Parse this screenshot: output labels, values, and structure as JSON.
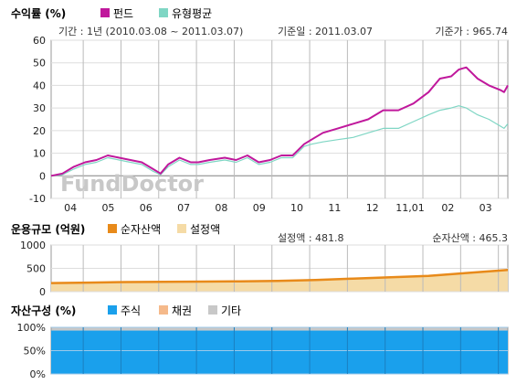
{
  "colors": {
    "fund": "#c0189c",
    "peer_avg": "#7fd6c4",
    "net_assets": "#e88a1a",
    "set_amount": "#f5dba6",
    "stock": "#1aa0ec",
    "bond": "#f5b98a",
    "other": "#c8c8c8",
    "grid": "#dddddd",
    "vgrid": "#bbbbbb"
  },
  "watermark": "FundDoctor",
  "chart_data": [
    {
      "id": "returns",
      "type": "line",
      "title": "수익률 (%)",
      "period_label": "기간 : 1년 (2010.03.08 ~ 2011.03.07)",
      "base_date_label": "기준일 : 2011.03.07",
      "base_price_label": "기준가 : 965.74",
      "ylim": [
        -10,
        60
      ],
      "yticks": [
        60,
        50,
        40,
        30,
        20,
        10,
        0,
        -10
      ],
      "grid": true,
      "legend_position": "top-left",
      "x_range": [
        0,
        12.1
      ],
      "xticks": [
        {
          "label": "04",
          "x": 0.85
        },
        {
          "label": "05",
          "x": 1.85
        },
        {
          "label": "06",
          "x": 2.85
        },
        {
          "label": "07",
          "x": 3.85
        },
        {
          "label": "08",
          "x": 4.85
        },
        {
          "label": "09",
          "x": 5.85
        },
        {
          "label": "10",
          "x": 6.85
        },
        {
          "label": "11",
          "x": 7.85
        },
        {
          "label": "12",
          "x": 8.85
        },
        {
          "label": "11,01",
          "x": 9.85
        },
        {
          "label": "02",
          "x": 10.85
        },
        {
          "label": "03",
          "x": 11.85
        }
      ],
      "series": [
        {
          "name": "펀드",
          "color_key": "fund",
          "x": [
            0,
            0.3,
            0.6,
            0.9,
            1.2,
            1.5,
            1.8,
            2.1,
            2.4,
            2.7,
            2.9,
            3.1,
            3.4,
            3.7,
            3.9,
            4.2,
            4.6,
            4.9,
            5.2,
            5.5,
            5.8,
            6.1,
            6.4,
            6.7,
            6.9,
            7.2,
            7.6,
            8.0,
            8.4,
            8.8,
            9.2,
            9.6,
            10.0,
            10.3,
            10.6,
            10.8,
            11.0,
            11.3,
            11.6,
            11.9,
            12.0,
            12.1
          ],
          "y": [
            0,
            1,
            4,
            6,
            7,
            9,
            8,
            7,
            6,
            3,
            1,
            5,
            8,
            6,
            6,
            7,
            8,
            7,
            9,
            6,
            7,
            9,
            9,
            14,
            16,
            19,
            21,
            23,
            25,
            29,
            29,
            32,
            37,
            43,
            44,
            47,
            48,
            43,
            40,
            38,
            37,
            40
          ]
        },
        {
          "name": "유형평균",
          "color_key": "peer_avg",
          "x": [
            0,
            0.3,
            0.6,
            0.9,
            1.2,
            1.5,
            1.8,
            2.1,
            2.4,
            2.7,
            2.9,
            3.1,
            3.4,
            3.7,
            3.9,
            4.2,
            4.6,
            4.9,
            5.2,
            5.5,
            5.8,
            6.1,
            6.4,
            6.7,
            6.9,
            7.2,
            7.6,
            8.0,
            8.4,
            8.8,
            9.2,
            9.6,
            10.0,
            10.3,
            10.6,
            10.8,
            11.0,
            11.3,
            11.6,
            11.9,
            12.0,
            12.1
          ],
          "y": [
            0,
            0.5,
            3,
            5,
            6,
            8,
            7,
            6,
            5,
            2,
            0.5,
            4,
            7,
            5,
            5,
            6,
            7,
            6,
            8,
            5,
            6,
            8,
            8,
            13,
            14,
            15,
            16,
            17,
            19,
            21,
            21,
            24,
            27,
            29,
            30,
            31,
            30,
            27,
            25,
            22,
            21,
            23
          ]
        }
      ]
    },
    {
      "id": "fund_size",
      "type": "area",
      "title": "운용규모 (억원)",
      "set_amount_label": "설정액 : 481.8",
      "net_assets_label": "순자산액 : 465.3",
      "ylim": [
        0,
        1000
      ],
      "yticks": [
        1000,
        500,
        0
      ],
      "grid": true,
      "legend_position": "top-left",
      "series": [
        {
          "name": "순자산액",
          "color_key": "net_assets",
          "x": [
            0,
            1,
            2,
            3,
            4,
            5,
            6,
            7,
            8,
            9,
            10,
            11,
            12.1
          ],
          "y": [
            185,
            195,
            205,
            210,
            215,
            222,
            230,
            250,
            280,
            310,
            340,
            400,
            465
          ]
        },
        {
          "name": "설정액",
          "color_key": "set_amount",
          "x": [
            0,
            1,
            2,
            3,
            4,
            5,
            6,
            7,
            8,
            9,
            10,
            11,
            12.1
          ],
          "y": [
            190,
            200,
            210,
            215,
            222,
            230,
            240,
            262,
            292,
            322,
            355,
            415,
            482
          ]
        }
      ]
    },
    {
      "id": "asset_mix",
      "type": "area",
      "title": "자산구성 (%)",
      "ylim": [
        0,
        100
      ],
      "yticks": [
        "100%",
        "50%",
        "0%"
      ],
      "grid": true,
      "legend_position": "top-left",
      "series": [
        {
          "name": "주식",
          "color_key": "stock",
          "values_pct_approx": 93
        },
        {
          "name": "채권",
          "color_key": "bond",
          "values_pct_approx": 0
        },
        {
          "name": "기타",
          "color_key": "other",
          "values_pct_approx": 7
        }
      ]
    }
  ]
}
